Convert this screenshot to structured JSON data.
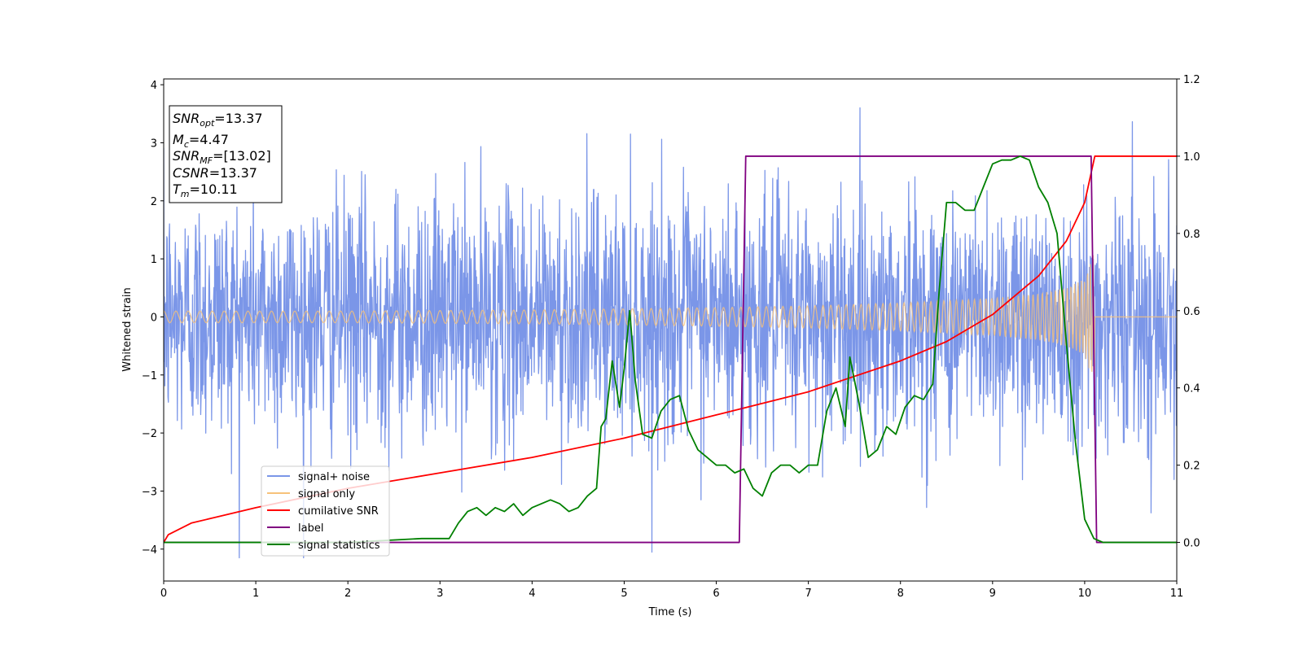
{
  "chart_data": {
    "type": "line",
    "title": "",
    "xlabel": "Time (s)",
    "ylabel": "Whitened strain",
    "y2label": "",
    "xlim": [
      0,
      11
    ],
    "ylim": [
      -4.55,
      4.1
    ],
    "y2lim": [
      -0.1,
      1.2
    ],
    "xticks": [
      "0",
      "1",
      "2",
      "3",
      "4",
      "5",
      "6",
      "7",
      "8",
      "9",
      "10",
      "11"
    ],
    "yticks": [
      "−4",
      "−3",
      "−2",
      "−1",
      "0",
      "1",
      "2",
      "3",
      "4"
    ],
    "y2ticks": [
      "0.0",
      "0.2",
      "0.4",
      "0.6",
      "0.8",
      "1.0",
      "1.2"
    ],
    "grid": false,
    "legend_position": "lower-left",
    "info_box": [
      {
        "var": "SNR",
        "sub": "opt",
        "value": "=13.37"
      },
      {
        "var": "M",
        "sub": "c",
        "value": "=4.47"
      },
      {
        "var": "SNR",
        "sub": "MF",
        "value": "=[13.02]"
      },
      {
        "var": "CSNR",
        "sub": "",
        "value": "=13.37"
      },
      {
        "var": "T",
        "sub": "m",
        "value": "=10.11"
      }
    ],
    "series": [
      {
        "name": "signal+ noise",
        "color": "#7b96e8",
        "axis": "left",
        "description_stats": {
          "amplitude_std": 1.0,
          "min": -4.15,
          "max": 3.7,
          "x_range": [
            0,
            11
          ]
        }
      },
      {
        "name": "signal only",
        "color": "#f7c27a",
        "axis": "left",
        "envelope": {
          "x": [
            0,
            2,
            4,
            6,
            7,
            8,
            9,
            9.5,
            9.8,
            10,
            10.11,
            11
          ],
          "amp": [
            0.1,
            0.1,
            0.12,
            0.16,
            0.19,
            0.24,
            0.32,
            0.4,
            0.5,
            0.65,
            1.2,
            0.0
          ]
        }
      },
      {
        "name": "cumilative SNR",
        "color": "#ff0000",
        "axis": "right",
        "x": [
          0,
          0.05,
          0.3,
          1,
          2,
          3,
          4,
          5,
          6,
          7,
          8,
          8.5,
          9,
          9.5,
          9.8,
          10,
          10.11,
          11
        ],
        "y": [
          0.0,
          0.02,
          0.05,
          0.09,
          0.14,
          0.18,
          0.22,
          0.27,
          0.33,
          0.39,
          0.47,
          0.52,
          0.59,
          0.69,
          0.78,
          0.88,
          1.0,
          1.0
        ]
      },
      {
        "name": "label",
        "color": "#800080",
        "axis": "right",
        "x": [
          0,
          6.25,
          6.32,
          10.07,
          10.13,
          11
        ],
        "y": [
          0,
          0,
          1,
          1,
          0,
          0
        ]
      },
      {
        "name": "signal statistics",
        "color": "#008000",
        "axis": "right",
        "x": [
          0,
          1,
          2,
          2.8,
          3.1,
          3.2,
          3.3,
          3.4,
          3.5,
          3.6,
          3.7,
          3.8,
          3.9,
          4.0,
          4.1,
          4.2,
          4.3,
          4.4,
          4.5,
          4.6,
          4.7,
          4.75,
          4.8,
          4.87,
          4.95,
          5.0,
          5.06,
          5.12,
          5.2,
          5.3,
          5.4,
          5.5,
          5.6,
          5.7,
          5.8,
          5.9,
          6.0,
          6.1,
          6.2,
          6.3,
          6.4,
          6.5,
          6.6,
          6.7,
          6.8,
          6.9,
          7.0,
          7.1,
          7.2,
          7.3,
          7.4,
          7.45,
          7.55,
          7.65,
          7.75,
          7.85,
          7.95,
          8.05,
          8.15,
          8.25,
          8.35,
          8.42,
          8.5,
          8.6,
          8.7,
          8.8,
          8.9,
          9.0,
          9.1,
          9.2,
          9.3,
          9.4,
          9.5,
          9.6,
          9.7,
          9.8,
          9.9,
          10.0,
          10.1,
          10.2,
          10.5,
          11
        ],
        "y": [
          0.0,
          0.0,
          0.0,
          0.01,
          0.01,
          0.05,
          0.08,
          0.09,
          0.07,
          0.09,
          0.08,
          0.1,
          0.07,
          0.09,
          0.1,
          0.11,
          0.1,
          0.08,
          0.09,
          0.12,
          0.14,
          0.3,
          0.32,
          0.47,
          0.35,
          0.45,
          0.6,
          0.42,
          0.28,
          0.27,
          0.34,
          0.37,
          0.38,
          0.29,
          0.24,
          0.22,
          0.2,
          0.2,
          0.18,
          0.19,
          0.14,
          0.12,
          0.18,
          0.2,
          0.2,
          0.18,
          0.2,
          0.2,
          0.34,
          0.4,
          0.3,
          0.48,
          0.36,
          0.22,
          0.24,
          0.3,
          0.28,
          0.35,
          0.38,
          0.37,
          0.41,
          0.65,
          0.88,
          0.88,
          0.86,
          0.86,
          0.92,
          0.98,
          0.99,
          0.99,
          1.0,
          0.99,
          0.92,
          0.88,
          0.8,
          0.52,
          0.26,
          0.06,
          0.01,
          0.0,
          0.0,
          0.0
        ]
      }
    ]
  }
}
